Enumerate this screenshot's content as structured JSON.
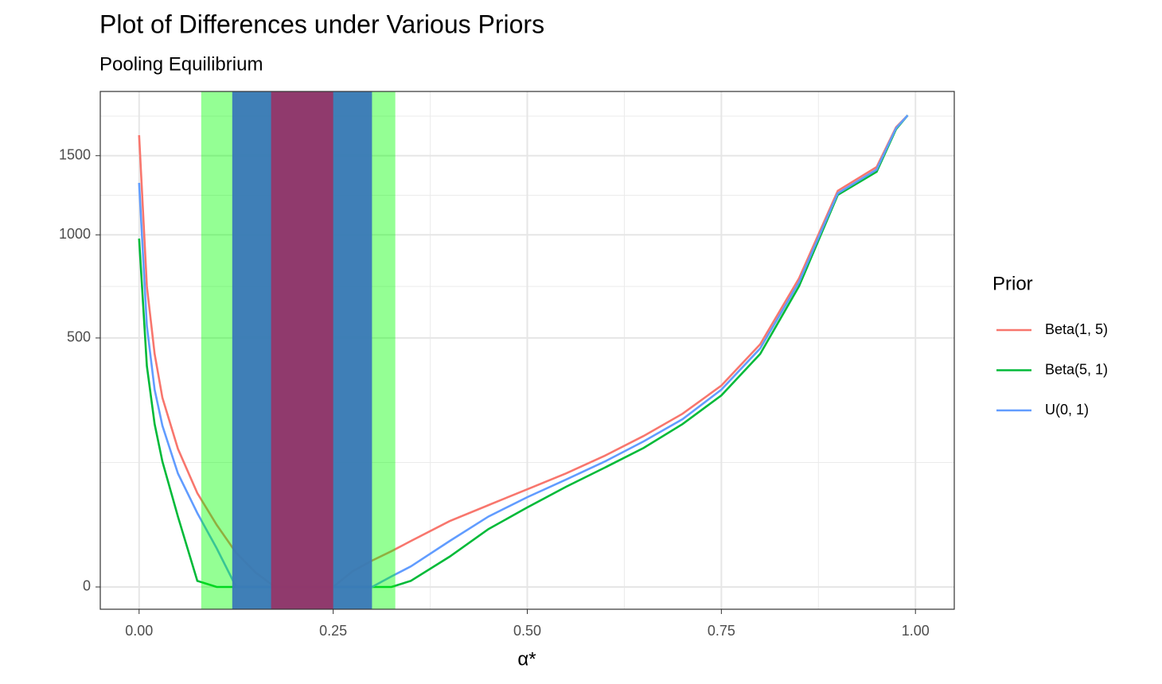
{
  "chart_data": {
    "type": "line",
    "title": "Plot of Differences under Various Priors",
    "subtitle": "Pooling Equilibrium",
    "x_label": "α*",
    "legend_title": "Prior",
    "legend_position": "right",
    "y_scale": "sqrt",
    "grid": true,
    "x": [
      0,
      0.01,
      0.02,
      0.03,
      0.05,
      0.075,
      0.1,
      0.125,
      0.15,
      0.175,
      0.2,
      0.25,
      0.275,
      0.3,
      0.325,
      0.35,
      0.4,
      0.45,
      0.5,
      0.55,
      0.6,
      0.65,
      0.7,
      0.75,
      0.8,
      0.85,
      0.9,
      0.95,
      0.975,
      0.99
    ],
    "series": [
      {
        "name": "Beta(1, 5)",
        "color": "#F8766D",
        "values": [
          1646,
          729,
          438,
          289,
          154,
          71,
          31,
          9.4,
          1.7,
          0,
          0,
          0,
          2,
          5.6,
          10.3,
          17,
          35,
          54,
          77,
          104,
          139,
          184,
          242,
          327,
          475,
          768,
          1266,
          1422,
          1704,
          1794
        ]
      },
      {
        "name": "Beta(5, 1)",
        "color": "#00BA38",
        "values": [
          979,
          394,
          214,
          127,
          40,
          0.3,
          0,
          0,
          0,
          0,
          0,
          0,
          0,
          0,
          0,
          0.3,
          7.4,
          27,
          51,
          81,
          115,
          156,
          214,
          296,
          438,
          729,
          1240,
          1390,
          1690,
          1794
        ]
      },
      {
        "name": "U(0, 1)",
        "color": "#619CFF",
        "values": [
          1317,
          549,
          314,
          210,
          104,
          44,
          12,
          0,
          0,
          0,
          0,
          0,
          0,
          0,
          0.9,
          3.4,
          17,
          40,
          65,
          93,
          127,
          171,
          227,
          314,
          459,
          749,
          1250,
          1405,
          1697,
          1794
        ]
      }
    ],
    "bands": [
      {
        "xmin": 0.08,
        "xmax": 0.33,
        "color": "#00ff00",
        "opacity": 0.42
      },
      {
        "xmin": 0.12,
        "xmax": 0.3,
        "color": "#3a78b8",
        "opacity": 0.95
      },
      {
        "xmin": 0.17,
        "xmax": 0.25,
        "color": "#b02050",
        "opacity": 0.72
      }
    ],
    "xlim": [
      -0.05,
      1.05
    ],
    "xticks": [
      {
        "value": 0,
        "label": "0.00"
      },
      {
        "value": 0.25,
        "label": "0.25"
      },
      {
        "value": 0.5,
        "label": "0.50"
      },
      {
        "value": 0.75,
        "label": "0.75"
      },
      {
        "value": 1,
        "label": "1.00"
      }
    ],
    "ylim": [
      -4,
      1980
    ],
    "yticks": [
      0,
      500,
      1000,
      1500
    ]
  }
}
